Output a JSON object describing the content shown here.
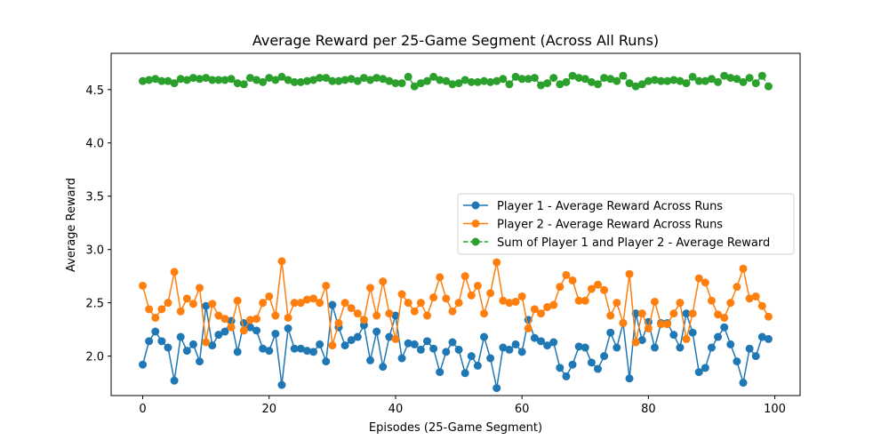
{
  "chart_data": {
    "type": "line",
    "title": "Average Reward per 25-Game Segment (Across All Runs)",
    "xlabel": "Episodes (25-Game Segment)",
    "ylabel": "Average Reward",
    "xlim": [
      -5,
      104
    ],
    "ylim": [
      1.63,
      4.84
    ],
    "xticks": [
      0,
      20,
      40,
      60,
      80,
      100
    ],
    "yticks": [
      2.0,
      2.5,
      3.0,
      3.5,
      4.0,
      4.5
    ],
    "xtick_labels": [
      "0",
      "20",
      "40",
      "60",
      "80",
      "100"
    ],
    "ytick_labels": [
      "2.0",
      "2.5",
      "3.0",
      "3.5",
      "4.0",
      "4.5"
    ],
    "grid": false,
    "legend_position": "center-right",
    "series": [
      {
        "name": "Player 1 - Average Reward Across Runs",
        "color": "#1f77b4",
        "linestyle": "solid",
        "values": [
          1.92,
          2.14,
          2.23,
          2.14,
          2.08,
          1.77,
          2.18,
          2.05,
          2.11,
          1.95,
          2.47,
          2.1,
          2.2,
          2.23,
          2.33,
          2.04,
          2.31,
          2.27,
          2.24,
          2.07,
          2.05,
          2.21,
          1.73,
          2.26,
          2.07,
          2.07,
          2.05,
          2.04,
          2.11,
          1.95,
          2.48,
          2.27,
          2.1,
          2.15,
          2.18,
          2.29,
          1.96,
          2.23,
          1.9,
          2.18,
          2.38,
          1.98,
          2.12,
          2.11,
          2.06,
          2.14,
          2.07,
          1.85,
          2.04,
          2.13,
          2.06,
          1.84,
          2.0,
          1.91,
          2.18,
          1.98,
          1.7,
          2.08,
          2.06,
          2.11,
          2.04,
          2.34,
          2.17,
          2.14,
          2.1,
          2.13,
          1.89,
          1.81,
          1.92,
          2.09,
          2.08,
          1.94,
          1.88,
          2.0,
          2.22,
          2.08,
          2.31,
          1.79,
          2.4,
          2.15,
          2.32,
          2.08,
          2.31,
          2.31,
          2.2,
          2.08,
          2.4,
          2.22,
          1.85,
          1.89,
          2.08,
          2.18,
          2.27,
          2.11,
          1.95,
          1.75,
          2.07,
          2.0,
          2.18,
          2.16
        ]
      },
      {
        "name": "Player 2 - Average Reward Across Runs",
        "color": "#ff7f0e",
        "linestyle": "solid",
        "values": [
          2.66,
          2.44,
          2.36,
          2.44,
          2.5,
          2.79,
          2.42,
          2.54,
          2.49,
          2.64,
          2.13,
          2.49,
          2.38,
          2.35,
          2.27,
          2.52,
          2.24,
          2.34,
          2.35,
          2.5,
          2.56,
          2.38,
          2.89,
          2.36,
          2.5,
          2.5,
          2.53,
          2.54,
          2.5,
          2.66,
          2.1,
          2.31,
          2.5,
          2.45,
          2.4,
          2.34,
          2.64,
          2.38,
          2.7,
          2.4,
          2.16,
          2.58,
          2.5,
          2.42,
          2.5,
          2.38,
          2.55,
          2.74,
          2.54,
          2.42,
          2.5,
          2.75,
          2.57,
          2.66,
          2.4,
          2.59,
          2.88,
          2.52,
          2.5,
          2.51,
          2.56,
          2.26,
          2.44,
          2.4,
          2.46,
          2.48,
          2.65,
          2.76,
          2.71,
          2.52,
          2.52,
          2.63,
          2.67,
          2.62,
          2.38,
          2.5,
          2.31,
          2.77,
          2.13,
          2.4,
          2.26,
          2.51,
          2.3,
          2.3,
          2.4,
          2.5,
          2.16,
          2.4,
          2.73,
          2.69,
          2.52,
          2.39,
          2.36,
          2.5,
          2.65,
          2.82,
          2.54,
          2.56,
          2.47,
          2.37
        ]
      },
      {
        "name": "Sum of Player 1 and Player 2 - Average Reward",
        "color": "#2ca02c",
        "linestyle": "dashed",
        "values": [
          4.58,
          4.59,
          4.6,
          4.58,
          4.58,
          4.56,
          4.6,
          4.59,
          4.61,
          4.6,
          4.61,
          4.59,
          4.59,
          4.59,
          4.6,
          4.56,
          4.55,
          4.61,
          4.59,
          4.57,
          4.61,
          4.59,
          4.62,
          4.59,
          4.57,
          4.57,
          4.58,
          4.59,
          4.61,
          4.61,
          4.58,
          4.58,
          4.59,
          4.6,
          4.58,
          4.61,
          4.59,
          4.61,
          4.6,
          4.58,
          4.56,
          4.56,
          4.62,
          4.53,
          4.56,
          4.58,
          4.62,
          4.59,
          4.58,
          4.55,
          4.56,
          4.59,
          4.57,
          4.57,
          4.58,
          4.57,
          4.58,
          4.6,
          4.55,
          4.62,
          4.6,
          4.6,
          4.61,
          4.54,
          4.56,
          4.61,
          4.55,
          4.57,
          4.63,
          4.61,
          4.6,
          4.57,
          4.55,
          4.61,
          4.6,
          4.58,
          4.63,
          4.56,
          4.53,
          4.55,
          4.58,
          4.59,
          4.58,
          4.58,
          4.59,
          4.58,
          4.56,
          4.62,
          4.58,
          4.58,
          4.6,
          4.57,
          4.63,
          4.61,
          4.6,
          4.57,
          4.61,
          4.56,
          4.63,
          4.53
        ]
      }
    ]
  }
}
